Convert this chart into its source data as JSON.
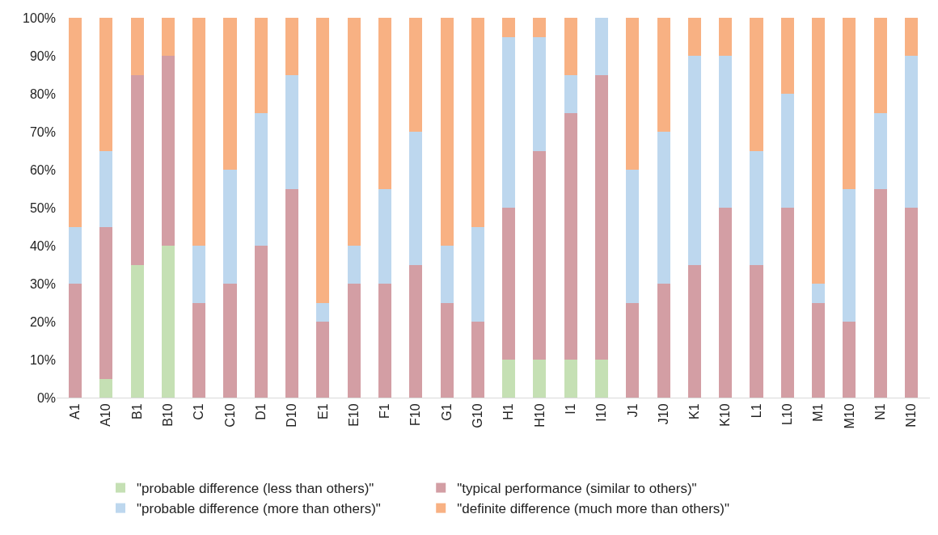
{
  "chart_data": {
    "type": "bar",
    "stacked": true,
    "legend": "bottom",
    "categories": [
      "A1",
      "A10",
      "B1",
      "B10",
      "C1",
      "C10",
      "D1",
      "D10",
      "E1",
      "E10",
      "F1",
      "F10",
      "G1",
      "G10",
      "H1",
      "H10",
      "I1",
      "I10",
      "J1",
      "J10",
      "K1",
      "K10",
      "L1",
      "L10",
      "M1",
      "M10",
      "N1",
      "N10"
    ],
    "ylim": [
      0,
      100
    ],
    "yticks": [
      {
        "value": 0,
        "label": "0%"
      },
      {
        "value": 10,
        "label": "10%"
      },
      {
        "value": 20,
        "label": "20%"
      },
      {
        "value": 30,
        "label": "30%"
      },
      {
        "value": 40,
        "label": "40%"
      },
      {
        "value": 50,
        "label": "50%"
      },
      {
        "value": 60,
        "label": "60%"
      },
      {
        "value": 70,
        "label": "70%"
      },
      {
        "value": 80,
        "label": "80%"
      },
      {
        "value": 90,
        "label": "90%"
      },
      {
        "value": 100,
        "label": "100%"
      }
    ],
    "series": [
      {
        "name": "\"probable difference (less than others)\"",
        "color": "#c5e0b4",
        "values": [
          0,
          5,
          35,
          40,
          0,
          0,
          0,
          0,
          0,
          0,
          0,
          0,
          0,
          0,
          10,
          10,
          10,
          10,
          0,
          0,
          0,
          0,
          0,
          0,
          0,
          0,
          0,
          0
        ]
      },
      {
        "name": "\"typical performance (similar to others)\"",
        "color": "#d39ea4",
        "values": [
          30,
          40,
          50,
          50,
          25,
          30,
          40,
          55,
          20,
          30,
          30,
          35,
          25,
          20,
          40,
          55,
          65,
          75,
          25,
          30,
          35,
          50,
          35,
          50,
          25,
          20,
          55,
          50
        ]
      },
      {
        "name": "\"probable difference (more than others)\"",
        "color": "#bdd7ee",
        "values": [
          15,
          20,
          0,
          0,
          15,
          30,
          35,
          30,
          5,
          10,
          25,
          35,
          15,
          25,
          45,
          30,
          10,
          15,
          35,
          40,
          55,
          40,
          30,
          30,
          5,
          35,
          20,
          40
        ]
      },
      {
        "name": "\"definite difference (much more than others)\"",
        "color": "#f8b183",
        "values": [
          55,
          35,
          15,
          10,
          60,
          40,
          25,
          15,
          75,
          60,
          45,
          30,
          60,
          55,
          5,
          5,
          15,
          0,
          40,
          30,
          10,
          10,
          35,
          20,
          70,
          45,
          25,
          10
        ]
      }
    ]
  }
}
